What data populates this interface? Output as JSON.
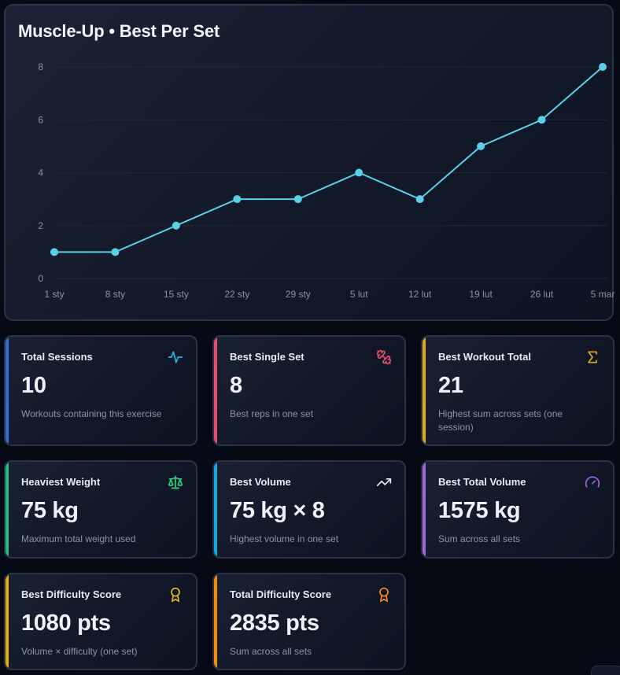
{
  "chart_data": {
    "type": "line",
    "title": "Muscle-Up • Best Per Set",
    "xlabel": "",
    "ylabel": "",
    "x": [
      "1 sty",
      "8 sty",
      "15 sty",
      "22 sty",
      "29 sty",
      "5 lut",
      "12 lut",
      "19 lut",
      "26 lut",
      "5 mar"
    ],
    "series": [
      {
        "name": "Best Per Set",
        "values": [
          1,
          1,
          2,
          3,
          3,
          4,
          3,
          5,
          6,
          8
        ],
        "color": "#5ad1e6"
      }
    ],
    "ylim": [
      0,
      8
    ],
    "yticks": [
      0,
      2,
      4,
      6,
      8
    ],
    "grid": true,
    "legend": "none"
  },
  "chart": {
    "title": "Muscle-Up • Best Per Set",
    "y_ticks": [
      "0",
      "2",
      "4",
      "6",
      "8"
    ],
    "x_ticks": [
      "1 sty",
      "8 sty",
      "15 sty",
      "22 sty",
      "29 sty",
      "5 lut",
      "12 lut",
      "19 lut",
      "26 lut",
      "5 mar"
    ]
  },
  "stats": [
    {
      "label": "Total Sessions",
      "value": "10",
      "desc": "Workouts containing this exercise",
      "icon": "activity-pulse-icon",
      "color": "#2f6fd6",
      "icon_color": "#22b8e0"
    },
    {
      "label": "Best Single Set",
      "value": "8",
      "desc": "Best reps in one set",
      "icon": "dumbbell-icon",
      "color": "#e0506a",
      "icon_color": "#e0506a"
    },
    {
      "label": "Best Workout Total",
      "value": "21",
      "desc": "Highest sum across sets (one session)",
      "icon": "sigma-icon",
      "color": "#e0a81c",
      "icon_color": "#e0a81c"
    },
    {
      "label": "Heaviest Weight",
      "value": "75 kg",
      "desc": "Maximum total weight used",
      "icon": "scale-icon",
      "color": "#1fbf7a",
      "icon_color": "#22d482"
    },
    {
      "label": "Best Volume",
      "value": "75 kg × 8",
      "desc": "Highest volume in one set",
      "icon": "trending-up-icon",
      "color": "#18a6e0",
      "icon_color": "#e8edf5"
    },
    {
      "label": "Best Total Volume",
      "value": "1575 kg",
      "desc": "Sum across all sets",
      "icon": "gauge-icon",
      "color": "#a066e0",
      "icon_color": "#a066e0"
    },
    {
      "label": "Best Difficulty Score",
      "value": "1080 pts",
      "desc": "Volume × difficulty (one set)",
      "icon": "award-icon",
      "color": "#e0ac10",
      "icon_color": "#e8b820"
    },
    {
      "label": "Total Difficulty Score",
      "value": "2835 pts",
      "desc": "Sum across all sets",
      "icon": "award-icon",
      "color": "#f08c10",
      "icon_color": "#f08c20"
    }
  ]
}
